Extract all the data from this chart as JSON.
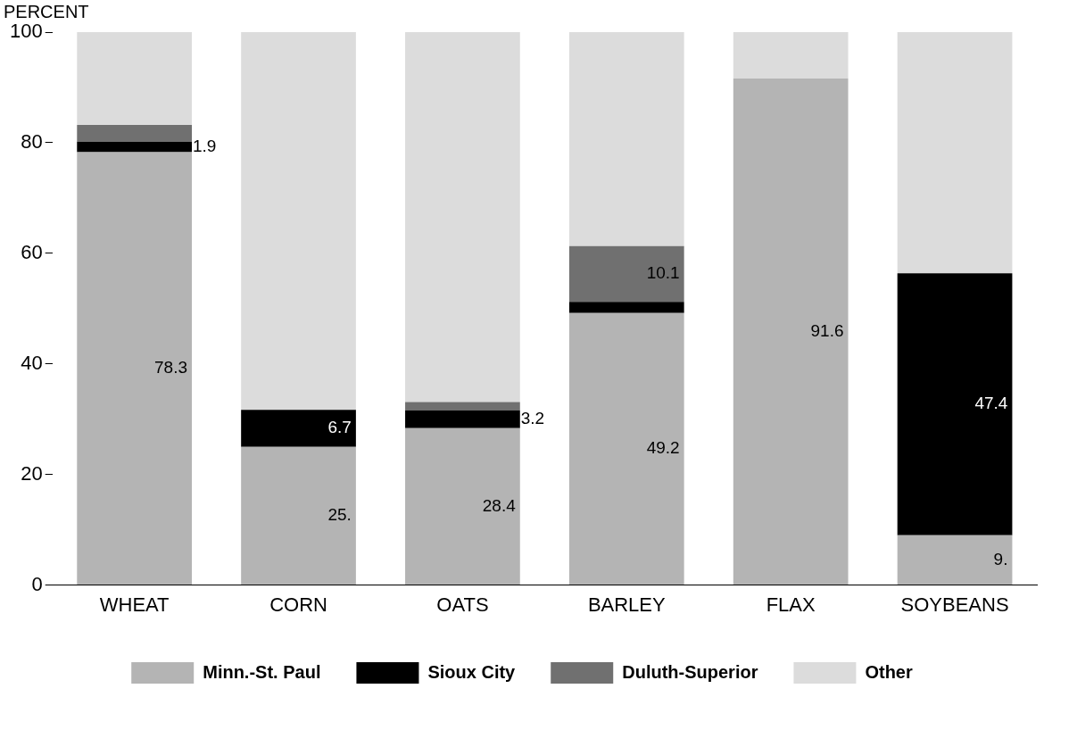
{
  "chart_data": {
    "type": "bar",
    "stacked": true,
    "ylabel": "PERCENT",
    "categories": [
      "WHEAT",
      "CORN",
      "OATS",
      "BARLEY",
      "FLAX",
      "SOYBEANS"
    ],
    "series": [
      {
        "name": "Minn.-St. Paul",
        "color": "#b4b4b4",
        "values": [
          78.3,
          25,
          28.4,
          49.2,
          91.6,
          9
        ],
        "value_labels": [
          "78.3",
          "25.",
          "28.4",
          "49.2",
          "91.6",
          "9."
        ]
      },
      {
        "name": "Sioux City",
        "color": "#000000",
        "values": [
          1.9,
          6.7,
          3.2,
          2,
          0,
          47.4
        ],
        "value_labels": [
          "1.9",
          "6.7",
          "3.2",
          null,
          null,
          "47.4"
        ]
      },
      {
        "name": "Duluth-Superior",
        "color": "#707070",
        "values": [
          3,
          0,
          1.5,
          10.1,
          0,
          0
        ],
        "value_labels": [
          null,
          null,
          null,
          "10.1",
          null,
          null
        ]
      },
      {
        "name": "Other",
        "color": "#dcdcdc",
        "values": [
          16.8,
          68.3,
          66.9,
          38.7,
          8.4,
          43.6
        ]
      }
    ],
    "ylim": [
      0,
      100
    ],
    "yticks": [
      0,
      20,
      40,
      60,
      80,
      100
    ],
    "grid": false,
    "legend": "bottom"
  }
}
